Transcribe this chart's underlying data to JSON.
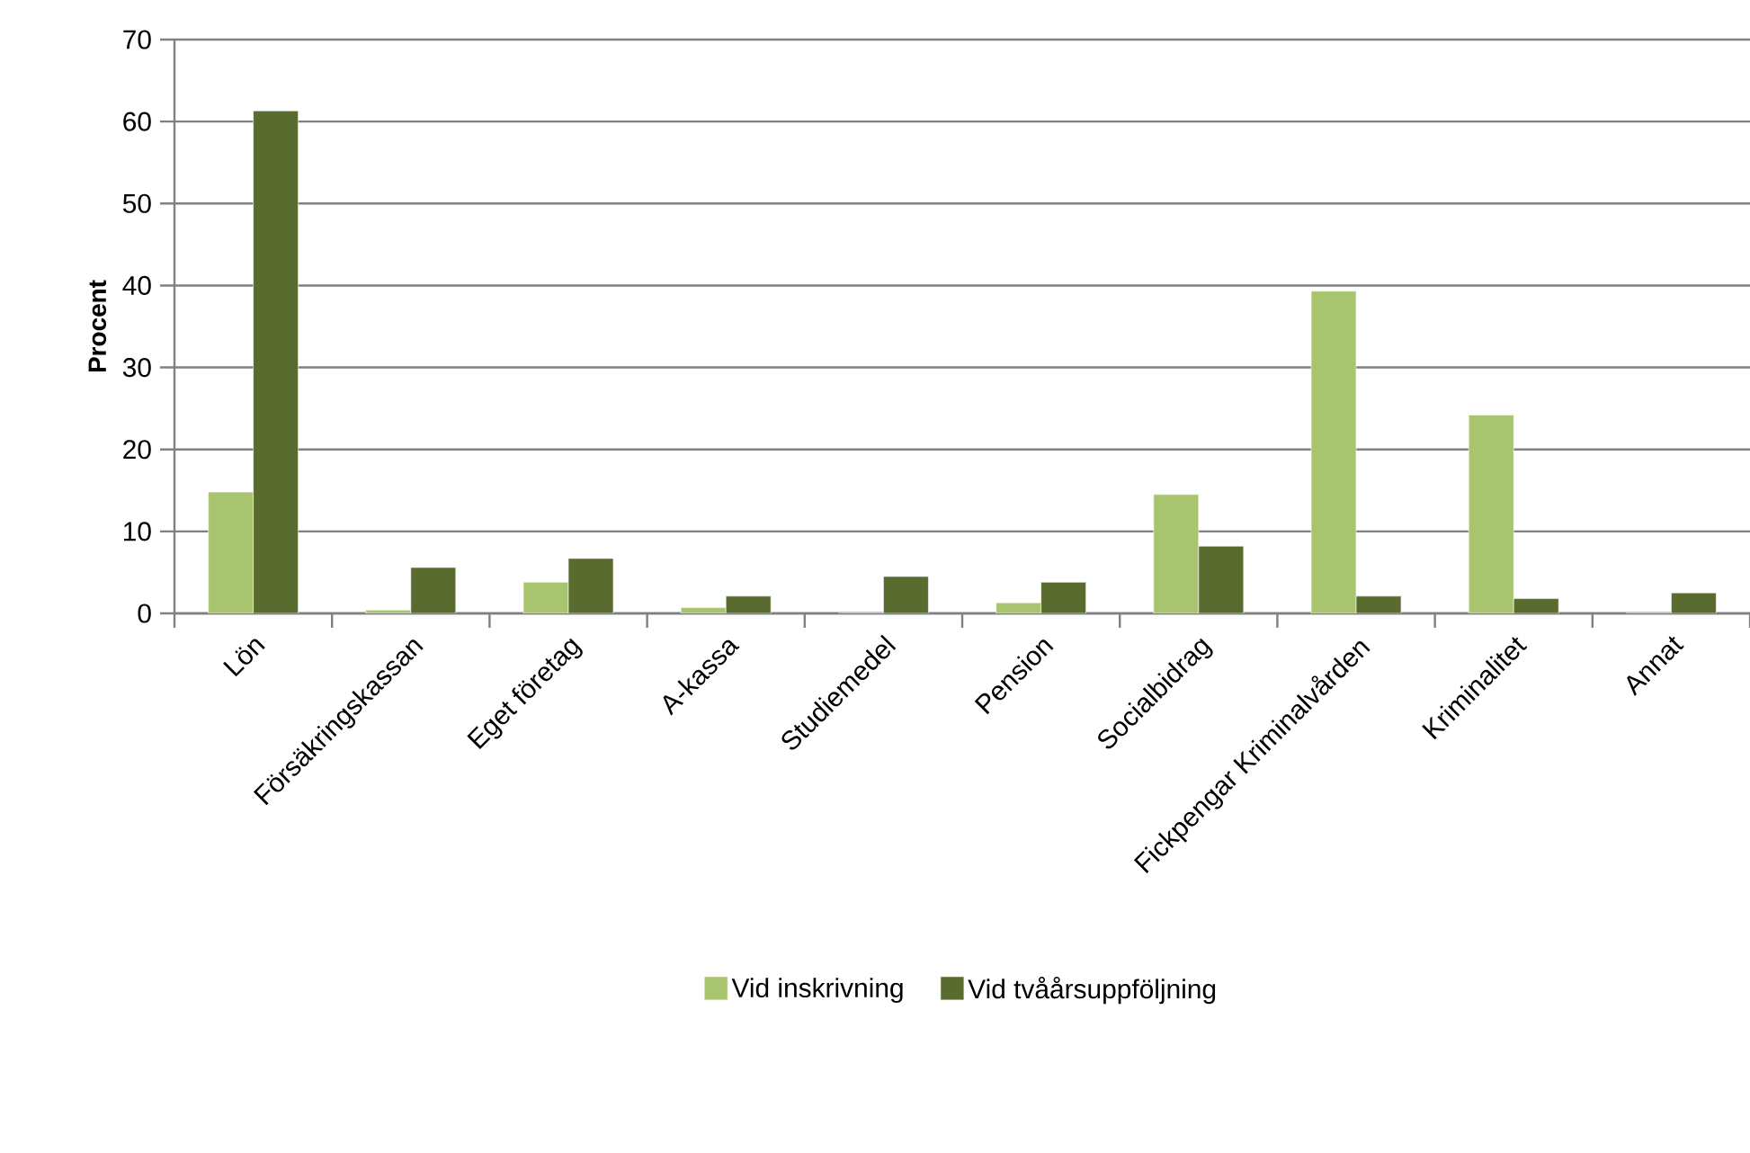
{
  "chart_data": {
    "type": "bar",
    "ylabel": "Procent",
    "categories": [
      "Lön",
      "Försäkringskassan",
      "Eget företag",
      "A-kassa",
      "Studiemedel",
      "Pension",
      "Socialbidrag",
      "Fickpengar Kriminalvården",
      "Kriminalitet",
      "Annat"
    ],
    "series": [
      {
        "name": "Vid inskrivning",
        "color": "#a9c46f",
        "values": [
          14.8,
          0.4,
          3.8,
          0.7,
          0,
          1.3,
          14.5,
          39.3,
          24.2,
          0
        ]
      },
      {
        "name": "Vid tvåårsuppföljning",
        "color": "#5a6b30",
        "values": [
          61.3,
          5.6,
          6.7,
          2.1,
          4.5,
          3.8,
          8.2,
          2.1,
          1.8,
          2.5
        ]
      }
    ],
    "ylim": [
      0,
      70
    ],
    "yticks": [
      0,
      10,
      20,
      30,
      40,
      50,
      60,
      70
    ],
    "grid": "y",
    "legend": "bottom"
  }
}
